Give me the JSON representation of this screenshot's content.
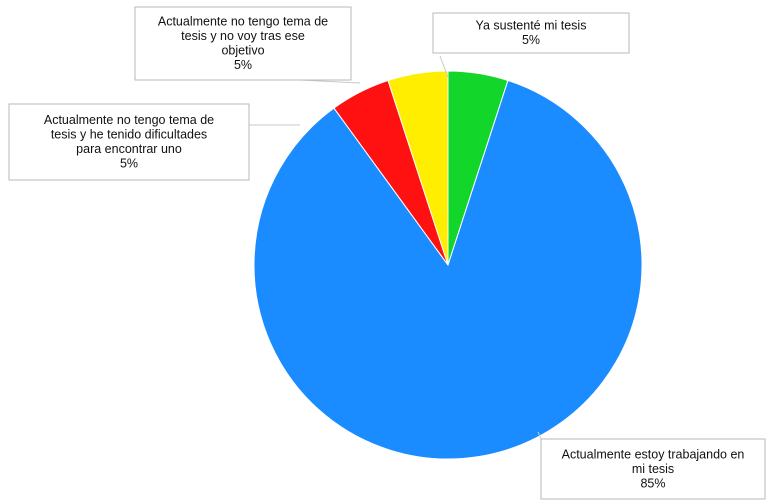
{
  "chart_data": {
    "type": "pie",
    "title": "",
    "slices": [
      {
        "label_lines": [
          "Ya sustenté mi tesis",
          "5%"
        ],
        "value": 5,
        "color": "#12d62a"
      },
      {
        "label_lines": [
          "Actualmente estoy trabajando en",
          "mi tesis",
          "85%"
        ],
        "value": 85,
        "color": "#1a8cff"
      },
      {
        "label_lines": [
          "Actualmente no tengo tema de",
          "tesis       y he tenido dificultades",
          "para encontrar uno",
          "5%"
        ],
        "value": 5,
        "color": "#ff1111"
      },
      {
        "label_lines": [
          "Actualmente no tengo tema de",
          "tesis        y no voy tras ese",
          "objetivo",
          "5%"
        ],
        "value": 5,
        "color": "#ffee00"
      }
    ],
    "start_angle_deg": 0,
    "direction": "clockwise",
    "legend": "none"
  }
}
